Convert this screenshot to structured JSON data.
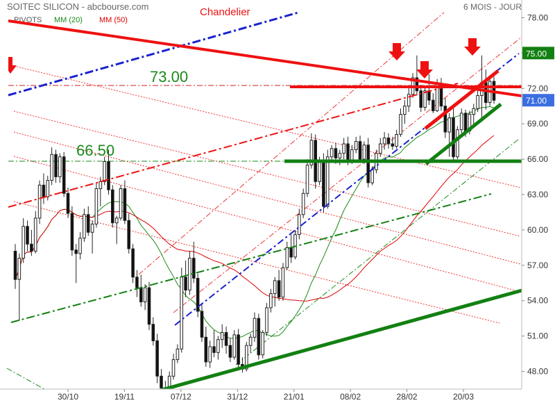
{
  "chart_data": {
    "type": "candlestick",
    "title": "SOITEC SILICON - abcbourse.com",
    "period_label": "6 MOIS - JOUR",
    "partial_label": "Chandelier",
    "legend": [
      {
        "label": "PIVOTS",
        "color": "#555555"
      },
      {
        "label": "MM (20)",
        "color": "#1a8a1a"
      },
      {
        "label": "MM (50)",
        "color": "#dd0000"
      }
    ],
    "y_ticks": [
      48,
      51,
      54,
      57,
      60,
      63,
      66,
      69,
      72,
      75,
      78
    ],
    "y_tick_labels": [
      "48.00",
      "51.00",
      "54.00",
      "57.00",
      "60.00",
      "63.00",
      "66.00",
      "69.00",
      "72.00",
      "75.00",
      "78.00"
    ],
    "ylim": [
      46.5,
      79.5
    ],
    "x_labels": [
      "30/10",
      "19/11",
      "07/12",
      "31/12",
      "21/01",
      "08/02",
      "28/02",
      "20/03"
    ],
    "price_tags": [
      {
        "value": 75.0,
        "label": "75.00",
        "color": "#128012"
      },
      {
        "value": 71.0,
        "label": "71.00",
        "color": "#3b6fe0"
      }
    ],
    "annotations": [
      {
        "label": "73.00",
        "level": 73.0,
        "color": "#1a8a1a"
      },
      {
        "label": "66.50",
        "level": 66.5,
        "color": "#1a8a1a"
      }
    ],
    "candles": [
      [
        58.2,
        58.8,
        55.0,
        55.8
      ],
      [
        55.8,
        58.0,
        52.3,
        57.6
      ],
      [
        57.6,
        61.0,
        57.2,
        60.3
      ],
      [
        60.3,
        60.8,
        58.2,
        58.8
      ],
      [
        58.8,
        60.0,
        57.8,
        58.2
      ],
      [
        58.2,
        61.6,
        58.0,
        61.0
      ],
      [
        61.0,
        64.2,
        60.5,
        63.8
      ],
      [
        63.8,
        64.8,
        62.2,
        62.8
      ],
      [
        62.8,
        64.6,
        62.5,
        64.2
      ],
      [
        64.2,
        67.0,
        63.8,
        66.4
      ],
      [
        66.4,
        66.8,
        64.0,
        64.5
      ],
      [
        64.5,
        66.5,
        64.0,
        66.2
      ],
      [
        66.2,
        66.6,
        62.8,
        63.1
      ],
      [
        63.1,
        63.6,
        61.0,
        61.4
      ],
      [
        61.4,
        62.0,
        57.8,
        58.3
      ],
      [
        58.3,
        58.8,
        55.5,
        58.0
      ],
      [
        58.0,
        59.8,
        57.5,
        59.3
      ],
      [
        59.3,
        61.8,
        59.0,
        61.3
      ],
      [
        61.3,
        62.0,
        59.5,
        59.8
      ],
      [
        59.8,
        60.8,
        58.0,
        60.5
      ],
      [
        60.5,
        64.0,
        60.2,
        63.5
      ],
      [
        63.5,
        64.5,
        62.0,
        64.1
      ],
      [
        64.1,
        66.2,
        63.8,
        65.8
      ],
      [
        65.8,
        66.8,
        63.0,
        63.4
      ],
      [
        63.4,
        63.8,
        60.2,
        60.6
      ],
      [
        60.6,
        61.2,
        58.8,
        61.0
      ],
      [
        61.0,
        63.8,
        60.8,
        63.5
      ],
      [
        63.5,
        64.2,
        60.5,
        60.8
      ],
      [
        60.8,
        61.4,
        58.0,
        58.4
      ],
      [
        58.4,
        58.8,
        55.5,
        56.0
      ],
      [
        56.0,
        56.6,
        54.3,
        55.1
      ],
      [
        55.1,
        56.2,
        53.5,
        53.9
      ],
      [
        53.9,
        55.4,
        53.2,
        55.1
      ],
      [
        55.1,
        55.6,
        51.5,
        52.0
      ],
      [
        52.0,
        52.6,
        50.2,
        50.6
      ],
      [
        50.6,
        51.2,
        47.0,
        47.6
      ],
      [
        47.6,
        48.2,
        46.2,
        46.6
      ],
      [
        46.6,
        47.2,
        46.0,
        46.5
      ],
      [
        46.5,
        48.0,
        46.4,
        47.6
      ],
      [
        47.6,
        49.5,
        47.3,
        49.0
      ],
      [
        49.0,
        50.3,
        48.7,
        49.9
      ],
      [
        49.9,
        56.8,
        49.6,
        56.0
      ],
      [
        56.0,
        57.4,
        54.3,
        54.9
      ],
      [
        54.9,
        58.2,
        54.5,
        57.6
      ],
      [
        57.6,
        59.0,
        55.5,
        55.9
      ],
      [
        55.9,
        56.3,
        52.6,
        53.1
      ],
      [
        53.1,
        53.7,
        50.5,
        50.9
      ],
      [
        50.9,
        51.8,
        48.4,
        48.8
      ],
      [
        48.8,
        50.6,
        48.3,
        50.1
      ],
      [
        50.1,
        51.5,
        49.2,
        49.6
      ],
      [
        49.6,
        51.0,
        49.0,
        50.7
      ],
      [
        50.7,
        52.0,
        50.0,
        51.3
      ],
      [
        51.3,
        51.8,
        49.5,
        50.2
      ],
      [
        50.2,
        50.8,
        48.8,
        49.2
      ],
      [
        49.2,
        51.5,
        49.0,
        51.1
      ],
      [
        51.1,
        51.6,
        48.2,
        48.6
      ],
      [
        48.6,
        49.2,
        47.9,
        48.2
      ],
      [
        48.2,
        50.5,
        48.0,
        50.2
      ],
      [
        50.2,
        51.2,
        49.6,
        50.9
      ],
      [
        50.9,
        53.0,
        50.5,
        52.5
      ],
      [
        52.5,
        52.9,
        49.0,
        49.4
      ],
      [
        49.4,
        51.5,
        49.1,
        51.3
      ],
      [
        51.3,
        53.8,
        51.0,
        53.4
      ],
      [
        53.4,
        55.0,
        53.0,
        54.6
      ],
      [
        54.6,
        56.0,
        53.5,
        55.7
      ],
      [
        55.7,
        56.6,
        54.0,
        54.3
      ],
      [
        54.3,
        57.2,
        54.0,
        56.8
      ],
      [
        56.8,
        59.0,
        56.6,
        58.5
      ],
      [
        58.5,
        59.6,
        57.2,
        57.7
      ],
      [
        57.7,
        60.0,
        57.5,
        59.6
      ],
      [
        59.6,
        61.8,
        59.2,
        61.3
      ],
      [
        61.3,
        63.5,
        61.0,
        63.1
      ],
      [
        63.1,
        66.0,
        62.8,
        65.5
      ],
      [
        65.5,
        68.2,
        65.2,
        67.6
      ],
      [
        67.6,
        68.1,
        63.5,
        64.1
      ],
      [
        64.1,
        66.2,
        63.8,
        65.8
      ],
      [
        65.8,
        66.5,
        61.5,
        62.0
      ],
      [
        62.0,
        66.8,
        61.8,
        66.2
      ],
      [
        66.2,
        67.2,
        65.8,
        66.9
      ],
      [
        66.9,
        67.4,
        65.6,
        66.1
      ],
      [
        66.1,
        66.8,
        65.5,
        66.5
      ],
      [
        66.5,
        67.8,
        66.0,
        67.3
      ],
      [
        67.3,
        67.9,
        65.5,
        65.9
      ],
      [
        65.9,
        67.2,
        65.6,
        66.8
      ],
      [
        66.8,
        67.9,
        66.5,
        67.5
      ],
      [
        67.5,
        68.0,
        65.7,
        66.0
      ],
      [
        66.0,
        67.5,
        65.6,
        67.2
      ],
      [
        67.2,
        67.8,
        63.6,
        64.0
      ],
      [
        64.0,
        65.4,
        63.8,
        65.1
      ],
      [
        65.1,
        66.8,
        64.8,
        66.5
      ],
      [
        66.5,
        67.8,
        66.2,
        67.3
      ],
      [
        67.3,
        68.3,
        66.8,
        67.8
      ],
      [
        67.8,
        68.2,
        66.9,
        67.3
      ],
      [
        67.3,
        67.9,
        66.8,
        67.1
      ],
      [
        67.1,
        68.5,
        66.9,
        68.1
      ],
      [
        68.1,
        70.3,
        67.9,
        69.8
      ],
      [
        69.8,
        71.0,
        69.0,
        70.5
      ],
      [
        70.5,
        72.2,
        70.0,
        71.5
      ],
      [
        71.5,
        73.3,
        71.2,
        72.9
      ],
      [
        72.9,
        74.8,
        71.4,
        71.8
      ],
      [
        71.8,
        72.3,
        70.0,
        70.4
      ],
      [
        70.4,
        72.2,
        70.1,
        71.8
      ],
      [
        71.8,
        73.2,
        70.6,
        71.0
      ],
      [
        71.0,
        71.6,
        69.9,
        70.1
      ],
      [
        70.1,
        72.8,
        70.0,
        72.4
      ],
      [
        72.4,
        72.9,
        70.1,
        70.5
      ],
      [
        70.5,
        71.2,
        67.8,
        68.3
      ],
      [
        68.3,
        69.9,
        66.2,
        69.5
      ],
      [
        69.5,
        70.6,
        65.8,
        66.2
      ],
      [
        66.2,
        68.8,
        66.0,
        68.5
      ],
      [
        68.5,
        70.3,
        68.2,
        69.9
      ],
      [
        69.9,
        70.2,
        67.9,
        68.4
      ],
      [
        68.4,
        70.1,
        68.1,
        69.8
      ],
      [
        69.8,
        70.7,
        68.9,
        70.3
      ],
      [
        70.3,
        71.8,
        70.0,
        71.4
      ],
      [
        71.4,
        74.8,
        69.2,
        72.5
      ],
      [
        72.5,
        73.6,
        70.2,
        70.8
      ],
      [
        70.8,
        73.1,
        70.5,
        72.6
      ],
      [
        72.6,
        73.0,
        70.7,
        71.0
      ]
    ]
  }
}
